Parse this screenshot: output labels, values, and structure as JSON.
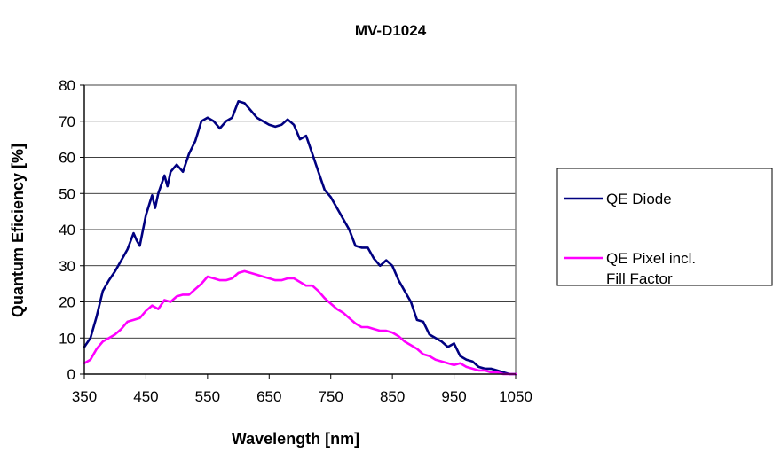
{
  "chart_data": {
    "type": "line",
    "title": "MV-D1024",
    "xlabel": "Wavelength [nm]",
    "ylabel": "Quantum Eficiency [%]",
    "xlim": [
      350,
      1050
    ],
    "ylim": [
      0,
      80
    ],
    "xticks": [
      "350",
      "450",
      "550",
      "650",
      "750",
      "850",
      "950",
      "1050"
    ],
    "yticks": [
      "0",
      "10",
      "20",
      "30",
      "40",
      "50",
      "60",
      "70",
      "80"
    ],
    "grid": "horizontal",
    "legend_position": "right",
    "series": [
      {
        "name": "QE Diode",
        "color": "#000080",
        "x": [
          350,
          360,
          370,
          380,
          390,
          400,
          410,
          420,
          430,
          435,
          440,
          450,
          460,
          465,
          470,
          480,
          485,
          490,
          500,
          510,
          520,
          530,
          540,
          550,
          560,
          570,
          580,
          590,
          600,
          610,
          620,
          630,
          640,
          650,
          660,
          670,
          680,
          690,
          700,
          710,
          720,
          730,
          740,
          750,
          760,
          770,
          780,
          790,
          800,
          810,
          820,
          830,
          840,
          850,
          860,
          870,
          880,
          890,
          900,
          910,
          920,
          930,
          940,
          950,
          960,
          970,
          980,
          990,
          1000,
          1010,
          1020,
          1030,
          1040,
          1050
        ],
        "values": [
          7.5,
          10,
          16,
          23,
          26,
          28.5,
          31.5,
          34.5,
          39,
          37,
          35.5,
          44,
          49.5,
          46,
          50,
          55,
          52,
          56,
          58,
          56,
          61,
          64.5,
          70,
          71,
          70,
          68,
          70,
          71,
          75.5,
          75,
          73,
          71,
          70,
          69,
          68.5,
          69,
          70.5,
          69,
          65,
          66,
          61,
          56,
          51,
          49,
          46,
          43,
          40,
          35.5,
          35,
          35,
          32,
          30,
          31.5,
          30,
          26,
          23,
          20,
          15,
          14.5,
          11,
          10,
          9,
          7.5,
          8.5,
          5,
          4,
          3.5,
          2,
          1.5,
          1.5,
          1,
          0.5,
          0,
          0
        ]
      },
      {
        "name": "QE Pixel incl. Fill Factor",
        "color": "#FF00FF",
        "x": [
          350,
          360,
          370,
          380,
          390,
          400,
          410,
          420,
          430,
          440,
          450,
          460,
          470,
          480,
          490,
          500,
          510,
          520,
          530,
          540,
          550,
          560,
          570,
          580,
          590,
          600,
          610,
          620,
          630,
          640,
          650,
          660,
          670,
          680,
          690,
          700,
          710,
          720,
          730,
          740,
          750,
          760,
          770,
          780,
          790,
          800,
          810,
          820,
          830,
          840,
          850,
          860,
          870,
          880,
          890,
          900,
          910,
          920,
          930,
          940,
          950,
          960,
          970,
          980,
          990,
          1000,
          1010,
          1020,
          1030,
          1040,
          1050
        ],
        "values": [
          3,
          4,
          7,
          9,
          10,
          11,
          12.5,
          14.5,
          15,
          15.5,
          17.5,
          19,
          18,
          20.5,
          20,
          21.5,
          22,
          22,
          23.5,
          25,
          27,
          26.5,
          26,
          26,
          26.5,
          28,
          28.5,
          28,
          27.5,
          27,
          26.5,
          26,
          26,
          26.5,
          26.5,
          25.5,
          24.5,
          24.5,
          23,
          21,
          19.5,
          18,
          17,
          15.5,
          14,
          13,
          13,
          12.5,
          12,
          12,
          11.5,
          10.5,
          9,
          8,
          7,
          5.5,
          5,
          4,
          3.5,
          3,
          2.5,
          3,
          2,
          1.5,
          1,
          1,
          0.5,
          0.5,
          0,
          0,
          0
        ]
      }
    ]
  }
}
